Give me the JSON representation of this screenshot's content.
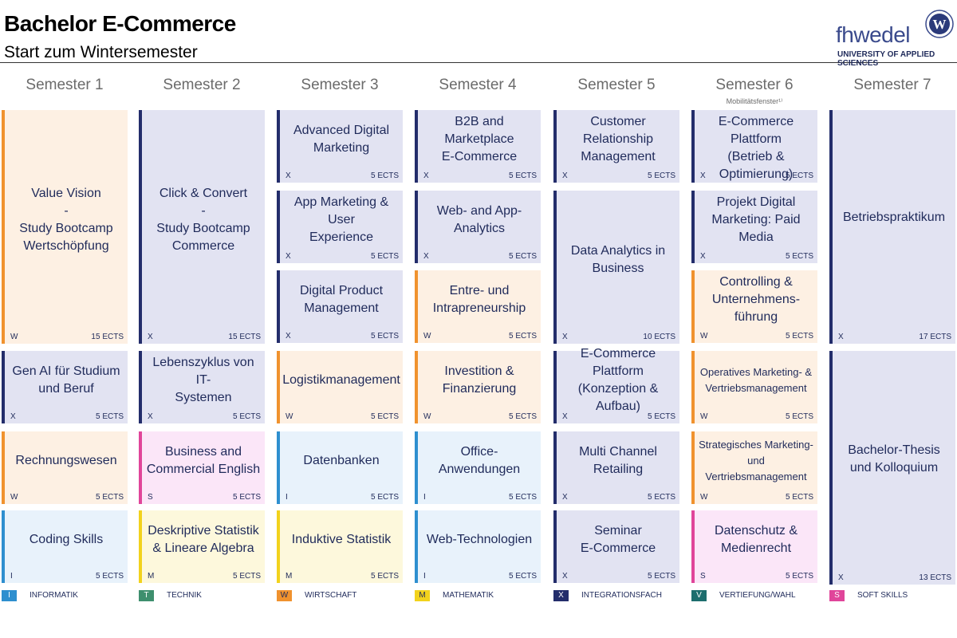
{
  "header": {
    "title": "Bachelor E-Commerce",
    "subtitle": "Start zum Wintersemester"
  },
  "logo": {
    "text_left": "fh",
    "text_right": "wedel",
    "tagline": "UNIVERSITY OF APPLIED SCIENCES",
    "seal_letter": "W"
  },
  "semesters": [
    {
      "label": "Semester 1"
    },
    {
      "label": "Semester 2"
    },
    {
      "label": "Semester 3"
    },
    {
      "label": "Semester 4"
    },
    {
      "label": "Semester 5"
    },
    {
      "label": "Semester 6",
      "note": "Mobilitätsfenster¹⁾"
    },
    {
      "label": "Semester 7"
    }
  ],
  "colors": {
    "I": {
      "bar": "#2e8fcf",
      "bg": "#e8f2fb",
      "legend_text": "#ffffff"
    },
    "T": {
      "bar": "#3e8f6e",
      "bg": "#e6f2ec",
      "legend_text": "#ffffff"
    },
    "W": {
      "bar": "#f0922e",
      "bg": "#fdf0e3",
      "legend_text": "#1f2a5a"
    },
    "M": {
      "bar": "#f2d21c",
      "bg": "#fdf8dc",
      "legend_text": "#1f2a5a"
    },
    "X": {
      "bar": "#232d6b",
      "bg": "#e2e3f2",
      "legend_text": "#ffffff"
    },
    "V": {
      "bar": "#1d6e6e",
      "bg": "#e1eeee",
      "legend_text": "#ffffff"
    },
    "S": {
      "bar": "#e0459a",
      "bg": "#fbe6f8",
      "legend_text": "#ffffff"
    }
  },
  "modules": [
    {
      "sem": 1,
      "slot": 0,
      "span": 3,
      "name": "Value Vision\n-\nStudy Bootcamp\nWertschöpfung",
      "cat": "W",
      "ects": "15 ECTS"
    },
    {
      "sem": 1,
      "slot": 3,
      "span": 1,
      "name": "Gen AI für Studium\nund Beruf",
      "cat": "X",
      "ects": "5 ECTS"
    },
    {
      "sem": 1,
      "slot": 4,
      "span": 1,
      "name": "Rechnungswesen",
      "cat": "W",
      "ects": "5 ECTS"
    },
    {
      "sem": 1,
      "slot": 5,
      "span": 1,
      "name": "Coding Skills",
      "cat": "I",
      "ects": "5 ECTS"
    },
    {
      "sem": 2,
      "slot": 0,
      "span": 3,
      "name": "Click & Convert\n-\nStudy Bootcamp\nCommerce",
      "cat": "X",
      "ects": "15 ECTS"
    },
    {
      "sem": 2,
      "slot": 3,
      "span": 1,
      "name": "Lebenszyklus von IT-\nSystemen",
      "cat": "X",
      "ects": "5 ECTS"
    },
    {
      "sem": 2,
      "slot": 4,
      "span": 1,
      "name": "Business and\nCommercial English",
      "cat": "S",
      "ects": "5 ECTS"
    },
    {
      "sem": 2,
      "slot": 5,
      "span": 1,
      "name": "Deskriptive Statistik\n& Lineare Algebra",
      "cat": "M",
      "ects": "5 ECTS"
    },
    {
      "sem": 3,
      "slot": 0,
      "span": 1,
      "name": "Advanced Digital\nMarketing",
      "cat": "X",
      "ects": "5 ECTS"
    },
    {
      "sem": 3,
      "slot": 1,
      "span": 1,
      "name": "App Marketing & User\nExperience",
      "cat": "X",
      "ects": "5 ECTS"
    },
    {
      "sem": 3,
      "slot": 2,
      "span": 1,
      "name": "Digital Product\nManagement",
      "cat": "X",
      "ects": "5 ECTS"
    },
    {
      "sem": 3,
      "slot": 3,
      "span": 1,
      "name": "Logistikmanagement",
      "cat": "W",
      "ects": "5 ECTS"
    },
    {
      "sem": 3,
      "slot": 4,
      "span": 1,
      "name": "Datenbanken",
      "cat": "I",
      "ects": "5 ECTS"
    },
    {
      "sem": 3,
      "slot": 5,
      "span": 1,
      "name": "Induktive Statistik",
      "cat": "M",
      "ects": "5 ECTS"
    },
    {
      "sem": 4,
      "slot": 0,
      "span": 1,
      "name": "B2B and Marketplace\nE-Commerce",
      "cat": "X",
      "ects": "5 ECTS"
    },
    {
      "sem": 4,
      "slot": 1,
      "span": 1,
      "name": "Web- and App-\nAnalytics",
      "cat": "X",
      "ects": "5 ECTS"
    },
    {
      "sem": 4,
      "slot": 2,
      "span": 1,
      "name": "Entre- und\nIntrapreneurship",
      "cat": "W",
      "ects": "5 ECTS"
    },
    {
      "sem": 4,
      "slot": 3,
      "span": 1,
      "name": "Investition &\nFinanzierung",
      "cat": "W",
      "ects": "5 ECTS"
    },
    {
      "sem": 4,
      "slot": 4,
      "span": 1,
      "name": "Office-Anwendungen",
      "cat": "I",
      "ects": "5 ECTS"
    },
    {
      "sem": 4,
      "slot": 5,
      "span": 1,
      "name": "Web-Technologien",
      "cat": "I",
      "ects": "5 ECTS"
    },
    {
      "sem": 5,
      "slot": 0,
      "span": 1,
      "name": "Customer Relationship\nManagement",
      "cat": "X",
      "ects": "5 ECTS"
    },
    {
      "sem": 5,
      "slot": 1,
      "span": 2,
      "name": "Data Analytics in\nBusiness",
      "cat": "X",
      "ects": "10 ECTS"
    },
    {
      "sem": 5,
      "slot": 3,
      "span": 1,
      "name": "E-Commerce Plattform\n(Konzeption & Aufbau)",
      "cat": "X",
      "ects": "5 ECTS"
    },
    {
      "sem": 5,
      "slot": 4,
      "span": 1,
      "name": "Multi Channel\nRetailing",
      "cat": "X",
      "ects": "5 ECTS"
    },
    {
      "sem": 5,
      "slot": 5,
      "span": 1,
      "name": "Seminar\nE-Commerce",
      "cat": "X",
      "ects": "5 ECTS"
    },
    {
      "sem": 6,
      "slot": 0,
      "span": 1,
      "name": "E-Commerce Plattform\n(Betrieb &\nOptimierung)",
      "cat": "X",
      "ects": "5 ECTS",
      "top": true
    },
    {
      "sem": 6,
      "slot": 1,
      "span": 1,
      "name": "Projekt Digital\nMarketing: Paid Media",
      "cat": "X",
      "ects": "5 ECTS"
    },
    {
      "sem": 6,
      "slot": 2,
      "span": 1,
      "name": "Controlling &\nUnternehmens-\nführung",
      "cat": "W",
      "ects": "5 ECTS"
    },
    {
      "sem": 6,
      "slot": 3,
      "span": 1,
      "name": "Operatives Marketing- &\nVertriebsmanagement",
      "cat": "W",
      "ects": "5 ECTS",
      "small": true
    },
    {
      "sem": 6,
      "slot": 4,
      "span": 1,
      "name": "Strategisches Marketing-\nund Vertriebsmanagement",
      "cat": "W",
      "ects": "5 ECTS",
      "small": true
    },
    {
      "sem": 6,
      "slot": 5,
      "span": 1,
      "name": "Datenschutz &\nMedienrecht",
      "cat": "S",
      "ects": "5 ECTS"
    },
    {
      "sem": 7,
      "slot": 0,
      "span": 3,
      "name": "Betriebspraktikum",
      "cat": "X",
      "ects": "17 ECTS",
      "top": true
    },
    {
      "sem": 7,
      "slot": 3,
      "span": 3,
      "name": "Bachelor-Thesis\nund Kolloquium",
      "cat": "X",
      "ects": "13 ECTS",
      "top": true
    }
  ],
  "legend": [
    {
      "code": "I",
      "label": "INFORMATIK"
    },
    {
      "code": "T",
      "label": "TECHNIK"
    },
    {
      "code": "W",
      "label": "WIRTSCHAFT"
    },
    {
      "code": "M",
      "label": "MATHEMATIK"
    },
    {
      "code": "X",
      "label": "INTEGRATIONSFACH"
    },
    {
      "code": "V",
      "label": "VERTIEFUNG/WAHL"
    },
    {
      "code": "S",
      "label": "SOFT SKILLS"
    }
  ]
}
